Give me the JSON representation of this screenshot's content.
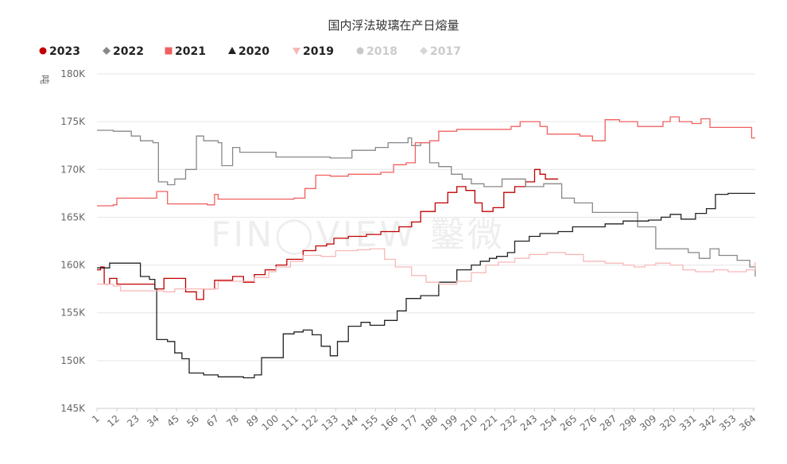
{
  "chart_data": {
    "type": "line",
    "title": "国内浮法玻璃在产日熔量",
    "unit_label": "吨",
    "watermark": "FIN◯VIEW 鑿微",
    "ylim": [
      145000,
      180000
    ],
    "y_ticks": [
      {
        "value": 180000,
        "label": "180K"
      },
      {
        "value": 175000,
        "label": "175K"
      },
      {
        "value": 170000,
        "label": "170K"
      },
      {
        "value": 165000,
        "label": "165K"
      },
      {
        "value": 160000,
        "label": "160K"
      },
      {
        "value": 155000,
        "label": "155K"
      },
      {
        "value": 150000,
        "label": "150K"
      },
      {
        "value": 145000,
        "label": "145K"
      }
    ],
    "xlim": [
      1,
      365
    ],
    "x_ticks": [
      "1",
      "12",
      "23",
      "34",
      "45",
      "56",
      "67",
      "78",
      "89",
      "100",
      "111",
      "122",
      "133",
      "144",
      "155",
      "166",
      "177",
      "188",
      "199",
      "210",
      "221",
      "232",
      "243",
      "254",
      "265",
      "276",
      "287",
      "298",
      "309",
      "320",
      "331",
      "342",
      "353",
      "364"
    ],
    "legend_position": "top-left",
    "grid": "horizontal",
    "series": [
      {
        "name": "2023",
        "color": "#c00000",
        "marker": "circle",
        "hidden": false,
        "points": [
          [
            1,
            159500
          ],
          [
            3,
            159800
          ],
          [
            5,
            158000
          ],
          [
            8,
            158600
          ],
          [
            12,
            158000
          ],
          [
            30,
            158000
          ],
          [
            33,
            157500
          ],
          [
            38,
            158600
          ],
          [
            48,
            158600
          ],
          [
            50,
            157200
          ],
          [
            56,
            156400
          ],
          [
            60,
            157500
          ],
          [
            66,
            158400
          ],
          [
            76,
            158800
          ],
          [
            82,
            158200
          ],
          [
            88,
            159000
          ],
          [
            94,
            159500
          ],
          [
            100,
            160000
          ],
          [
            106,
            160600
          ],
          [
            115,
            161500
          ],
          [
            122,
            162000
          ],
          [
            128,
            162200
          ],
          [
            132,
            162800
          ],
          [
            140,
            163000
          ],
          [
            150,
            163200
          ],
          [
            158,
            163500
          ],
          [
            168,
            164000
          ],
          [
            175,
            164500
          ],
          [
            180,
            165600
          ],
          [
            188,
            166500
          ],
          [
            195,
            167600
          ],
          [
            200,
            168200
          ],
          [
            205,
            167800
          ],
          [
            210,
            166500
          ],
          [
            214,
            165600
          ],
          [
            220,
            166000
          ],
          [
            226,
            167600
          ],
          [
            232,
            168200
          ],
          [
            238,
            168700
          ],
          [
            243,
            170000
          ],
          [
            246,
            169500
          ],
          [
            249,
            169000
          ],
          [
            256,
            169000
          ]
        ]
      },
      {
        "name": "2022",
        "color": "#888888",
        "marker": "diamond",
        "hidden": false,
        "points": [
          [
            1,
            174100
          ],
          [
            10,
            174000
          ],
          [
            20,
            173500
          ],
          [
            25,
            173000
          ],
          [
            32,
            172800
          ],
          [
            35,
            168700
          ],
          [
            40,
            168400
          ],
          [
            44,
            169000
          ],
          [
            50,
            170000
          ],
          [
            56,
            173500
          ],
          [
            60,
            173000
          ],
          [
            68,
            172800
          ],
          [
            70,
            170400
          ],
          [
            76,
            172300
          ],
          [
            80,
            171800
          ],
          [
            100,
            171300
          ],
          [
            130,
            171200
          ],
          [
            142,
            172000
          ],
          [
            155,
            172300
          ],
          [
            162,
            172800
          ],
          [
            173,
            173300
          ],
          [
            175,
            172500
          ],
          [
            180,
            172800
          ],
          [
            185,
            170700
          ],
          [
            190,
            170300
          ],
          [
            197,
            169500
          ],
          [
            203,
            169000
          ],
          [
            208,
            168500
          ],
          [
            215,
            168200
          ],
          [
            225,
            169000
          ],
          [
            238,
            168200
          ],
          [
            248,
            168500
          ],
          [
            258,
            167000
          ],
          [
            265,
            166500
          ],
          [
            275,
            165500
          ],
          [
            288,
            165500
          ],
          [
            300,
            164000
          ],
          [
            310,
            161700
          ],
          [
            320,
            161700
          ],
          [
            328,
            161300
          ],
          [
            334,
            160700
          ],
          [
            340,
            161700
          ],
          [
            345,
            161000
          ],
          [
            355,
            160500
          ],
          [
            362,
            159800
          ],
          [
            365,
            158800
          ]
        ]
      },
      {
        "name": "2021",
        "color": "#f06060",
        "marker": "square",
        "hidden": false,
        "points": [
          [
            1,
            166200
          ],
          [
            10,
            166300
          ],
          [
            12,
            167000
          ],
          [
            30,
            167000
          ],
          [
            34,
            167700
          ],
          [
            40,
            166400
          ],
          [
            62,
            166300
          ],
          [
            66,
            167400
          ],
          [
            68,
            166900
          ],
          [
            110,
            167000
          ],
          [
            116,
            168000
          ],
          [
            122,
            169400
          ],
          [
            130,
            169300
          ],
          [
            140,
            169500
          ],
          [
            158,
            169700
          ],
          [
            165,
            170500
          ],
          [
            172,
            170700
          ],
          [
            177,
            172800
          ],
          [
            185,
            173000
          ],
          [
            190,
            174000
          ],
          [
            200,
            174200
          ],
          [
            210,
            174200
          ],
          [
            230,
            174500
          ],
          [
            235,
            175000
          ],
          [
            246,
            174500
          ],
          [
            250,
            173700
          ],
          [
            268,
            173500
          ],
          [
            275,
            173000
          ],
          [
            282,
            175200
          ],
          [
            290,
            175000
          ],
          [
            300,
            174500
          ],
          [
            314,
            175000
          ],
          [
            318,
            175500
          ],
          [
            323,
            175000
          ],
          [
            330,
            174800
          ],
          [
            335,
            175300
          ],
          [
            340,
            174400
          ],
          [
            360,
            174400
          ],
          [
            363,
            173300
          ],
          [
            365,
            173300
          ]
        ]
      },
      {
        "name": "2020",
        "color": "#222222",
        "marker": "triangle",
        "hidden": false,
        "points": [
          [
            1,
            159700
          ],
          [
            8,
            160200
          ],
          [
            22,
            160200
          ],
          [
            25,
            158800
          ],
          [
            30,
            158500
          ],
          [
            33,
            157500
          ],
          [
            34,
            152200
          ],
          [
            40,
            152000
          ],
          [
            44,
            150800
          ],
          [
            48,
            150200
          ],
          [
            52,
            148700
          ],
          [
            60,
            148500
          ],
          [
            68,
            148300
          ],
          [
            82,
            148200
          ],
          [
            88,
            148500
          ],
          [
            92,
            150300
          ],
          [
            100,
            150300
          ],
          [
            104,
            152800
          ],
          [
            110,
            153000
          ],
          [
            115,
            153200
          ],
          [
            120,
            152700
          ],
          [
            125,
            151500
          ],
          [
            130,
            150500
          ],
          [
            134,
            152000
          ],
          [
            140,
            153600
          ],
          [
            147,
            154000
          ],
          [
            152,
            153700
          ],
          [
            160,
            154200
          ],
          [
            167,
            155200
          ],
          [
            172,
            156500
          ],
          [
            180,
            156800
          ],
          [
            190,
            158200
          ],
          [
            200,
            159500
          ],
          [
            208,
            160000
          ],
          [
            213,
            160400
          ],
          [
            218,
            160700
          ],
          [
            222,
            160900
          ],
          [
            228,
            161300
          ],
          [
            232,
            162500
          ],
          [
            240,
            163000
          ],
          [
            246,
            163300
          ],
          [
            256,
            163500
          ],
          [
            264,
            164000
          ],
          [
            282,
            164300
          ],
          [
            292,
            164600
          ],
          [
            306,
            164700
          ],
          [
            313,
            165000
          ],
          [
            318,
            165300
          ],
          [
            324,
            164800
          ],
          [
            332,
            165400
          ],
          [
            338,
            165900
          ],
          [
            343,
            167400
          ],
          [
            350,
            167500
          ],
          [
            365,
            167500
          ]
        ]
      },
      {
        "name": "2019",
        "color": "#f7b8b8",
        "marker": "triangle-down",
        "hidden": false,
        "points": [
          [
            1,
            158000
          ],
          [
            10,
            157800
          ],
          [
            14,
            157300
          ],
          [
            30,
            157300
          ],
          [
            38,
            157200
          ],
          [
            44,
            157500
          ],
          [
            60,
            157500
          ],
          [
            68,
            158300
          ],
          [
            80,
            158300
          ],
          [
            88,
            158700
          ],
          [
            96,
            159300
          ],
          [
            100,
            159800
          ],
          [
            108,
            160400
          ],
          [
            115,
            161000
          ],
          [
            125,
            160900
          ],
          [
            133,
            161500
          ],
          [
            145,
            161600
          ],
          [
            152,
            161700
          ],
          [
            160,
            160600
          ],
          [
            166,
            159800
          ],
          [
            175,
            158900
          ],
          [
            183,
            158200
          ],
          [
            190,
            158000
          ],
          [
            200,
            158300
          ],
          [
            208,
            159200
          ],
          [
            216,
            160000
          ],
          [
            223,
            160300
          ],
          [
            232,
            160700
          ],
          [
            240,
            161100
          ],
          [
            250,
            161300
          ],
          [
            260,
            161100
          ],
          [
            270,
            160400
          ],
          [
            282,
            160200
          ],
          [
            292,
            160000
          ],
          [
            298,
            159800
          ],
          [
            304,
            160000
          ],
          [
            310,
            160200
          ],
          [
            318,
            160000
          ],
          [
            325,
            159500
          ],
          [
            332,
            159300
          ],
          [
            342,
            159500
          ],
          [
            350,
            159300
          ],
          [
            360,
            159500
          ],
          [
            365,
            160300
          ]
        ]
      },
      {
        "name": "2018",
        "color": "#c8c8c8",
        "marker": "circle",
        "hidden": true,
        "points": []
      },
      {
        "name": "2017",
        "color": "#d6d6d6",
        "marker": "diamond",
        "hidden": true,
        "points": []
      }
    ]
  }
}
